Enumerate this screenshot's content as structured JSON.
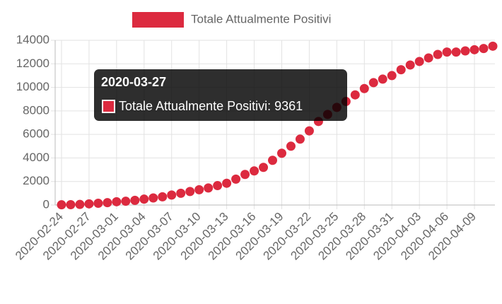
{
  "chart_data": {
    "type": "line",
    "categories": [
      "2020-02-24",
      null,
      null,
      "2020-02-27",
      null,
      null,
      "2020-03-01",
      null,
      null,
      "2020-03-04",
      null,
      null,
      "2020-03-07",
      null,
      null,
      "2020-03-10",
      null,
      null,
      "2020-03-13",
      null,
      null,
      "2020-03-16",
      null,
      null,
      "2020-03-19",
      null,
      null,
      "2020-03-22",
      null,
      null,
      "2020-03-25",
      null,
      null,
      "2020-03-28",
      null,
      null,
      "2020-03-31",
      null,
      null,
      "2020-04-03",
      null,
      null,
      "2020-04-06",
      null,
      null,
      "2020-04-09",
      null,
      null
    ],
    "series": [
      {
        "name": "Totale Attualmente Positivi",
        "color": "#dc2a3f",
        "values": [
          20,
          30,
          50,
          100,
          150,
          200,
          280,
          320,
          400,
          500,
          600,
          700,
          850,
          1000,
          1150,
          1300,
          1450,
          1650,
          1850,
          2200,
          2600,
          2900,
          3200,
          3800,
          4400,
          5000,
          5600,
          6300,
          7100,
          7700,
          8300,
          8800,
          9361,
          9900,
          10400,
          10700,
          11000,
          11500,
          11900,
          12200,
          12500,
          12800,
          13000,
          13000,
          13100,
          13200,
          13300,
          13500
        ]
      }
    ],
    "ylim": [
      0,
      14000
    ],
    "yticks": [
      0,
      2000,
      4000,
      6000,
      8000,
      10000,
      12000,
      14000
    ],
    "grid": true,
    "legend": "top",
    "tooltip": {
      "title": "2020-03-27",
      "text": "Totale Attualmente Positivi: 9361"
    }
  }
}
